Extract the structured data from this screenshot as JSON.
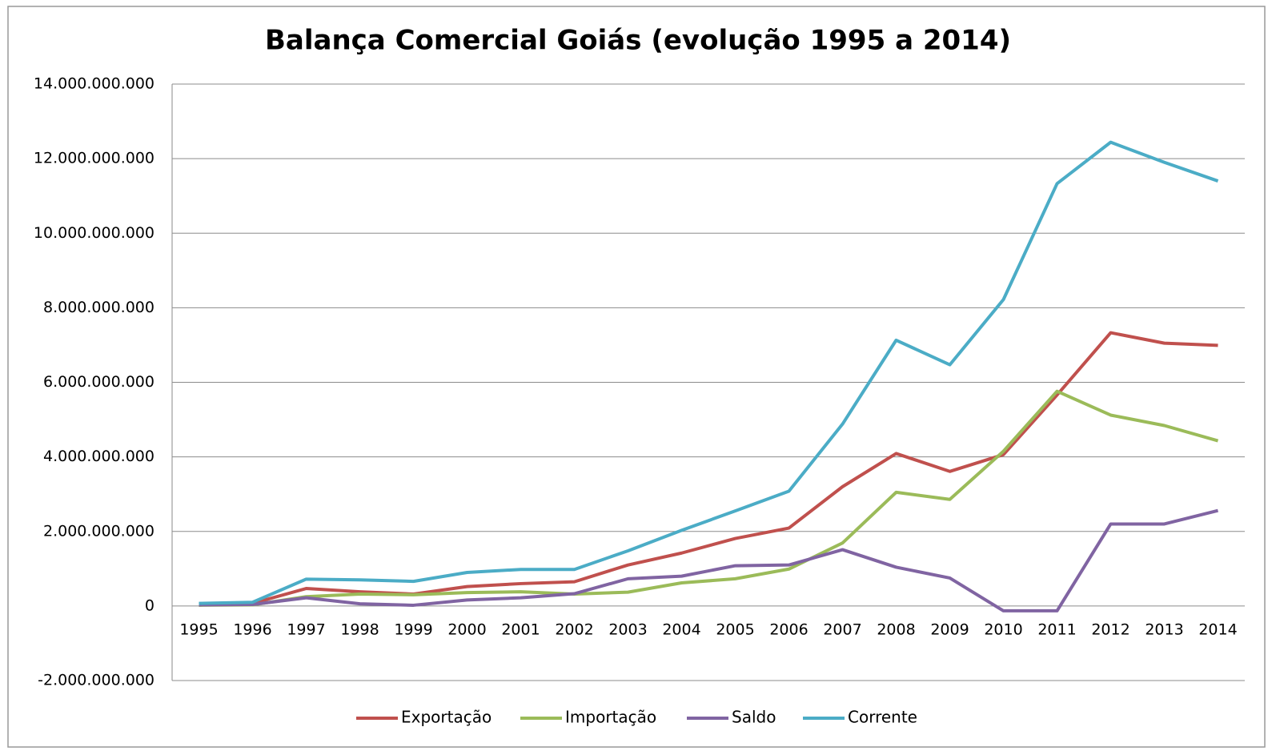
{
  "chart_data": {
    "type": "line",
    "title": "Balança Comercial Goiás (evolução 1995 a 2014)",
    "categories": [
      "1995",
      "1996",
      "1997",
      "1998",
      "1999",
      "2000",
      "2001",
      "2002",
      "2003",
      "2004",
      "2005",
      "2006",
      "2007",
      "2008",
      "2009",
      "2010",
      "2011",
      "2012",
      "2013",
      "2014"
    ],
    "series": [
      {
        "name": "Exportação",
        "color": "#c0504d",
        "values": [
          50000000,
          70000000,
          470000000,
          380000000,
          320000000,
          520000000,
          600000000,
          650000000,
          1100000000,
          1420000000,
          1810000000,
          2090000000,
          3200000000,
          4090000000,
          3610000000,
          4060000000,
          5660000000,
          7330000000,
          7050000000,
          6990000000
        ]
      },
      {
        "name": "Importação",
        "color": "#9bbb59",
        "values": [
          20000000,
          30000000,
          250000000,
          320000000,
          300000000,
          360000000,
          380000000,
          320000000,
          370000000,
          620000000,
          730000000,
          990000000,
          1690000000,
          3050000000,
          2860000000,
          4150000000,
          5760000000,
          5120000000,
          4840000000,
          4430000000
        ]
      },
      {
        "name": "Saldo",
        "color": "#8064a2",
        "values": [
          30000000,
          40000000,
          220000000,
          60000000,
          20000000,
          160000000,
          220000000,
          330000000,
          730000000,
          800000000,
          1080000000,
          1100000000,
          1510000000,
          1040000000,
          750000000,
          -130000000,
          -130000000,
          2200000000,
          2200000000,
          2560000000
        ]
      },
      {
        "name": "Corrente",
        "color": "#4bacc6",
        "values": [
          70000000,
          100000000,
          720000000,
          700000000,
          660000000,
          900000000,
          980000000,
          980000000,
          1480000000,
          2030000000,
          2550000000,
          3080000000,
          4880000000,
          7130000000,
          6470000000,
          8220000000,
          11330000000,
          12440000000,
          11900000000,
          11400000000
        ]
      }
    ],
    "ylim": [
      -2000000000,
      14000000000
    ],
    "yticks": [
      {
        "value": -2000000000,
        "label": "-2.000.000.000"
      },
      0,
      {
        "value": 2000000000,
        "label": "2.000.000.000"
      },
      {
        "value": 4000000000,
        "label": "4.000.000.000"
      },
      {
        "value": 6000000000,
        "label": "6.000.000.000"
      },
      {
        "value": 8000000000,
        "label": "8.000.000.000"
      },
      {
        "value": 10000000000,
        "label": "10.000.000.000"
      },
      {
        "value": 12000000000,
        "label": "12.000.000.000"
      },
      {
        "value": 14000000000,
        "label": "14.000.000.000"
      }
    ],
    "grid": true,
    "legend": "bottom"
  }
}
